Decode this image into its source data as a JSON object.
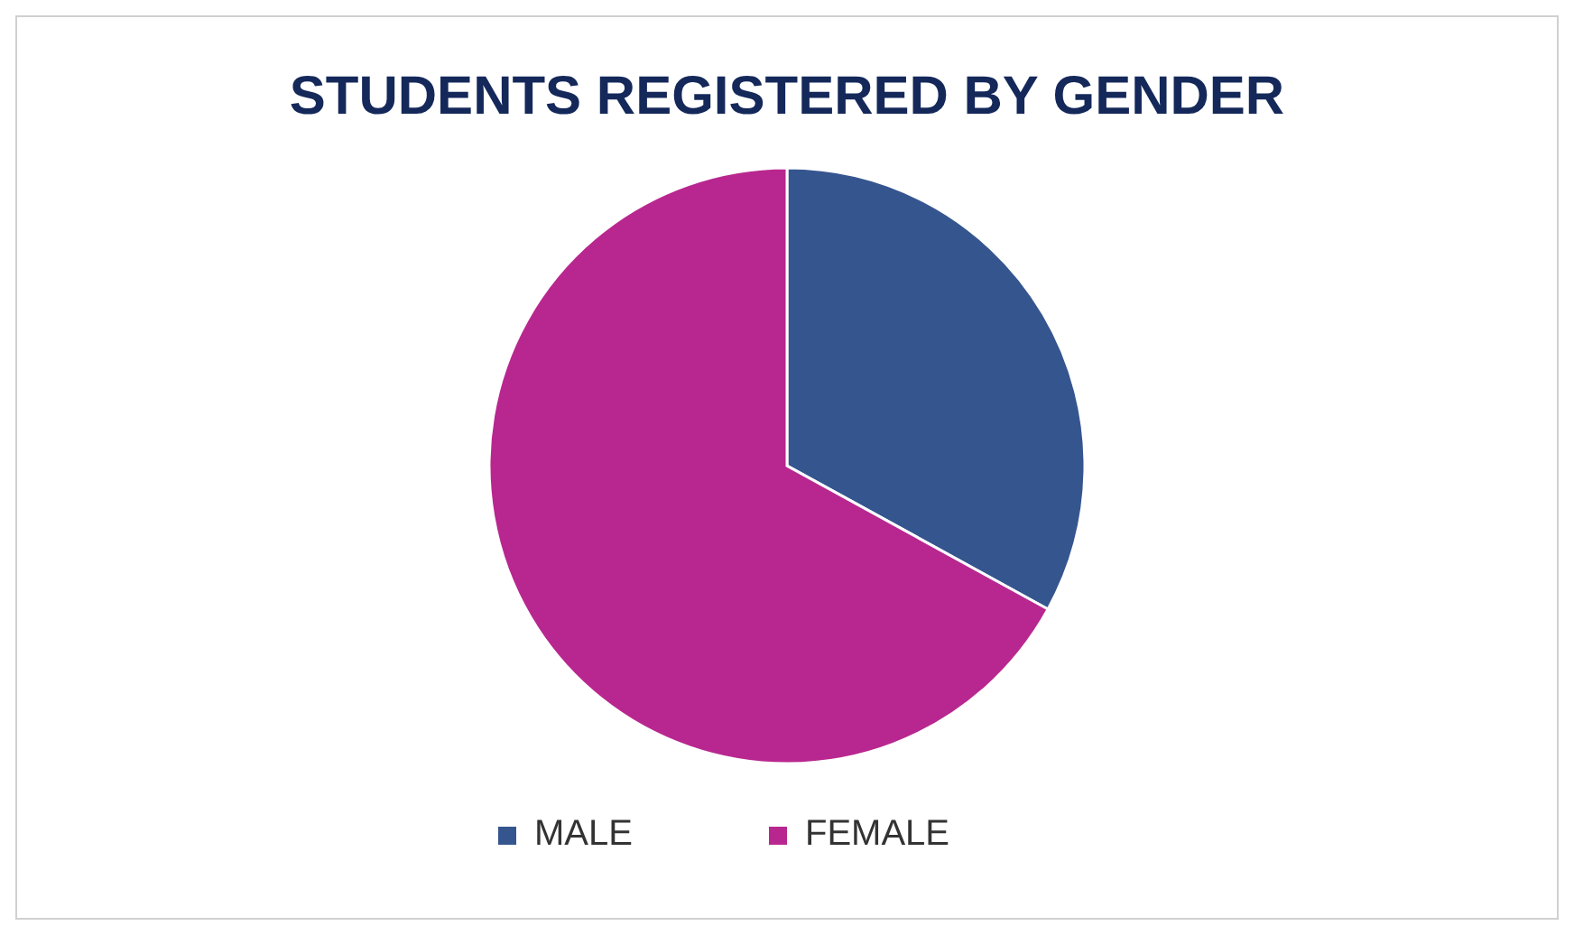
{
  "chart_data": {
    "type": "pie",
    "title": "STUDENTS REGISTERED BY GENDER",
    "categories": [
      "MALE",
      "FEMALE"
    ],
    "values": [
      33,
      67
    ],
    "colors": [
      "#35558f",
      "#b8278f"
    ],
    "legend": "bottom"
  }
}
